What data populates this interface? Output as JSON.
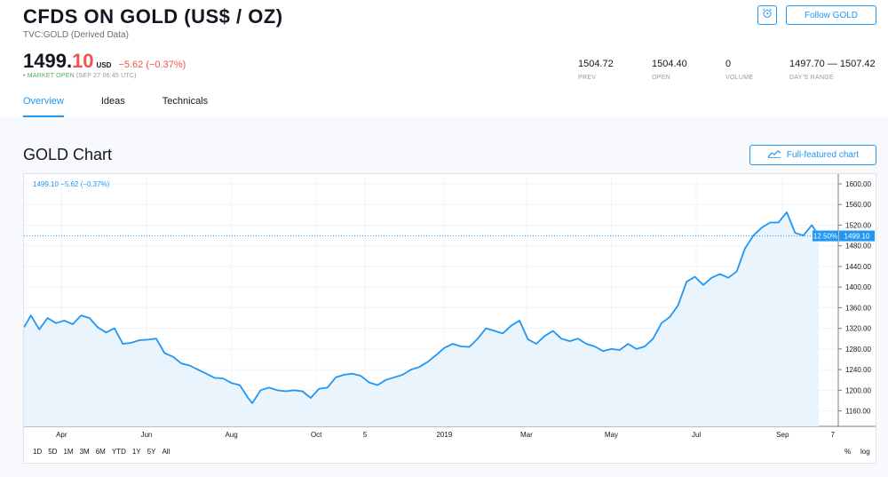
{
  "header": {
    "title": "CFDS ON GOLD (US$ / OZ)",
    "subtitle": "TVC:GOLD (Derived Data)",
    "price_int": "1499.",
    "price_dec": "10",
    "currency": "USD",
    "change": "−5.62 (−0.37%)",
    "market_status": "• MARKET OPEN",
    "market_time": "(SEP 27 06:45 UTC)",
    "follow_label": "Follow GOLD",
    "alert_icon": "alarm-clock-add-icon"
  },
  "stats": [
    {
      "value": "1504.72",
      "label": "PREV"
    },
    {
      "value": "1504.40",
      "label": "OPEN"
    },
    {
      "value": "0",
      "label": "VOLUME"
    },
    {
      "value": "1497.70 — 1507.42",
      "label": "DAY'S RANGE"
    }
  ],
  "tabs": [
    {
      "label": "Overview",
      "active": true
    },
    {
      "label": "Ideas",
      "active": false
    },
    {
      "label": "Technicals",
      "active": false
    }
  ],
  "chart_section": {
    "title": "GOLD Chart",
    "full_featured_label": "Full-featured chart",
    "ranges": [
      "1D",
      "5D",
      "1M",
      "3M",
      "6M",
      "YTD",
      "1Y",
      "5Y",
      "All"
    ],
    "pct_label": "%",
    "log_label": "log"
  },
  "colors": {
    "accent": "#2196f3",
    "negative": "#ef5350",
    "positive": "#4caf50",
    "line": "#2196f3",
    "area": "#eaf4fd"
  },
  "chart_data": {
    "type": "area",
    "legend_text": "1499.10  −5.62 (−0.37%)",
    "last_value_label": "1499.10",
    "last_pct_label": "12.50%",
    "last_value": 1499.1,
    "y_ticks": [
      1160,
      1200,
      1240,
      1280,
      1320,
      1360,
      1400,
      1440,
      1480,
      1520,
      1560,
      1600
    ],
    "y_tick_labels": [
      "1160.00",
      "1200.00",
      "1240.00",
      "1280.00",
      "1320.00",
      "1360.00",
      "1400.00",
      "1440.00",
      "1480.00",
      "1520.00",
      "1560.00",
      "1600.00"
    ],
    "ylim": [
      1130,
      1612
    ],
    "x_range": [
      "2018-03-05",
      "2019-10-11"
    ],
    "x_ticks": [
      {
        "label": "Apr",
        "date": "2018-04-01"
      },
      {
        "label": "Jun",
        "date": "2018-06-01"
      },
      {
        "label": "Aug",
        "date": "2018-08-01"
      },
      {
        "label": "Oct",
        "date": "2018-10-01"
      },
      {
        "label": "5",
        "date": "2018-11-05"
      },
      {
        "label": "2019",
        "date": "2019-01-01"
      },
      {
        "label": "Mar",
        "date": "2019-03-01"
      },
      {
        "label": "May",
        "date": "2019-05-01"
      },
      {
        "label": "Jul",
        "date": "2019-07-01"
      },
      {
        "label": "Sep",
        "date": "2019-09-01"
      },
      {
        "label": "7",
        "date": "2019-10-07"
      }
    ],
    "series": [
      {
        "x": [
          "2018-03-05",
          "2018-03-10",
          "2018-03-16",
          "2018-03-22",
          "2018-03-28",
          "2018-04-03",
          "2018-04-09",
          "2018-04-15",
          "2018-04-21",
          "2018-04-27",
          "2018-05-03",
          "2018-05-09",
          "2018-05-15",
          "2018-05-21",
          "2018-05-27",
          "2018-06-02",
          "2018-06-08",
          "2018-06-14",
          "2018-06-20",
          "2018-06-26",
          "2018-07-02",
          "2018-07-08",
          "2018-07-14",
          "2018-07-20",
          "2018-07-26",
          "2018-08-01",
          "2018-08-07",
          "2018-08-13",
          "2018-08-16",
          "2018-08-22",
          "2018-08-28",
          "2018-09-03",
          "2018-09-09",
          "2018-09-15",
          "2018-09-21",
          "2018-09-27",
          "2018-10-03",
          "2018-10-09",
          "2018-10-15",
          "2018-10-21",
          "2018-10-27",
          "2018-11-02",
          "2018-11-08",
          "2018-11-14",
          "2018-11-20",
          "2018-11-26",
          "2018-12-02",
          "2018-12-08",
          "2018-12-14",
          "2018-12-20",
          "2018-12-26",
          "2019-01-01",
          "2019-01-07",
          "2019-01-13",
          "2019-01-19",
          "2019-01-25",
          "2019-01-31",
          "2019-02-06",
          "2019-02-12",
          "2019-02-18",
          "2019-02-24",
          "2019-03-02",
          "2019-03-08",
          "2019-03-14",
          "2019-03-20",
          "2019-03-26",
          "2019-04-01",
          "2019-04-07",
          "2019-04-13",
          "2019-04-19",
          "2019-04-25",
          "2019-05-01",
          "2019-05-07",
          "2019-05-13",
          "2019-05-19",
          "2019-05-25",
          "2019-05-31",
          "2019-06-06",
          "2019-06-12",
          "2019-06-18",
          "2019-06-24",
          "2019-06-30",
          "2019-07-06",
          "2019-07-12",
          "2019-07-18",
          "2019-07-24",
          "2019-07-30",
          "2019-08-05",
          "2019-08-11",
          "2019-08-17",
          "2019-08-23",
          "2019-08-29",
          "2019-09-04",
          "2019-09-10",
          "2019-09-16",
          "2019-09-22",
          "2019-09-27"
        ],
        "y": [
          1322,
          1345,
          1318,
          1340,
          1330,
          1335,
          1328,
          1345,
          1340,
          1322,
          1312,
          1320,
          1290,
          1292,
          1297,
          1298,
          1300,
          1272,
          1265,
          1252,
          1248,
          1240,
          1232,
          1224,
          1223,
          1214,
          1210,
          1185,
          1175,
          1200,
          1205,
          1200,
          1198,
          1200,
          1198,
          1185,
          1203,
          1205,
          1225,
          1230,
          1232,
          1228,
          1215,
          1210,
          1220,
          1225,
          1230,
          1240,
          1245,
          1255,
          1268,
          1282,
          1290,
          1285,
          1284,
          1300,
          1320,
          1315,
          1310,
          1325,
          1335,
          1299,
          1290,
          1305,
          1315,
          1300,
          1295,
          1300,
          1290,
          1285,
          1276,
          1280,
          1278,
          1290,
          1280,
          1285,
          1300,
          1330,
          1342,
          1365,
          1410,
          1420,
          1404,
          1418,
          1425,
          1418,
          1430,
          1475,
          1500,
          1515,
          1525,
          1525,
          1545,
          1505,
          1500,
          1520,
          1499
        ]
      }
    ]
  }
}
